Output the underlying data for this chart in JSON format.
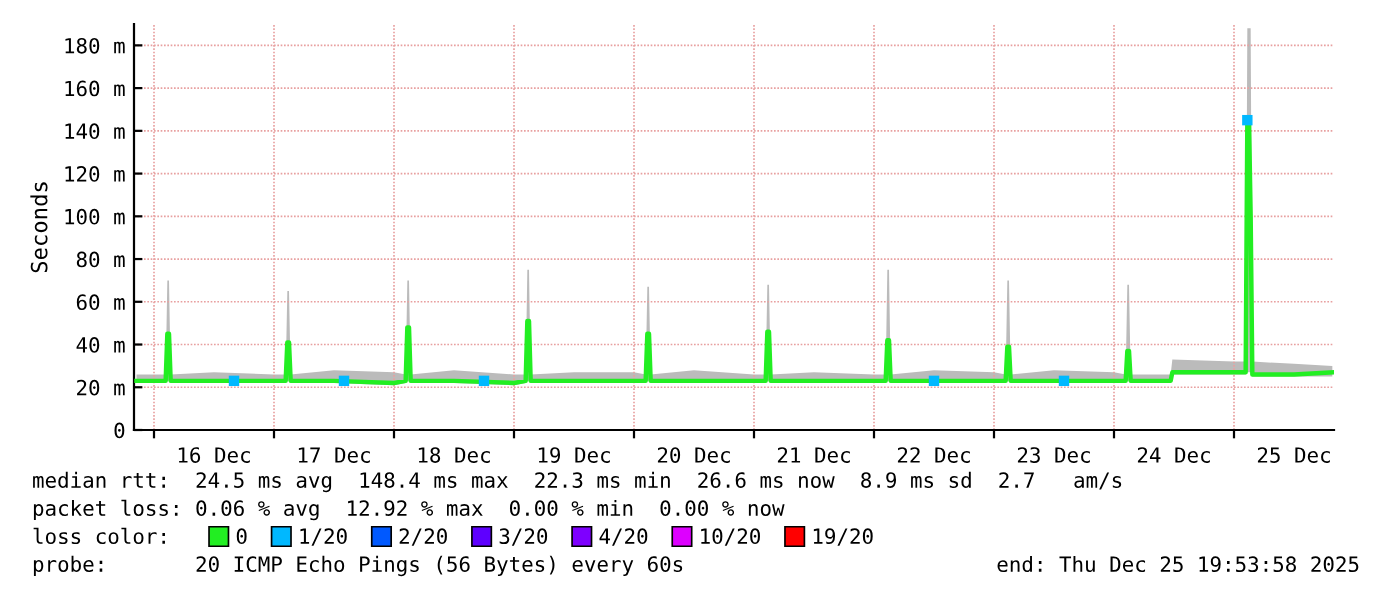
{
  "chart_data": {
    "type": "line",
    "ylabel": "Seconds",
    "legend_title": "loss color:",
    "legend": "bottom",
    "grid": true,
    "xlim": [
      "2025-12-15T20:00",
      "2025-12-25T20:00"
    ],
    "xticks": [
      {
        "value": "2025-12-16T00:00",
        "label": null
      },
      {
        "value": "2025-12-16T12:00",
        "label": "16 Dec"
      },
      {
        "value": "2025-12-17T00:00",
        "label": null
      },
      {
        "value": "2025-12-17T12:00",
        "label": "17 Dec"
      },
      {
        "value": "2025-12-18T00:00",
        "label": null
      },
      {
        "value": "2025-12-18T12:00",
        "label": "18 Dec"
      },
      {
        "value": "2025-12-19T00:00",
        "label": null
      },
      {
        "value": "2025-12-19T12:00",
        "label": "19 Dec"
      },
      {
        "value": "2025-12-20T00:00",
        "label": null
      },
      {
        "value": "2025-12-20T12:00",
        "label": "20 Dec"
      },
      {
        "value": "2025-12-21T00:00",
        "label": null
      },
      {
        "value": "2025-12-21T12:00",
        "label": "21 Dec"
      },
      {
        "value": "2025-12-22T00:00",
        "label": null
      },
      {
        "value": "2025-12-22T12:00",
        "label": "22 Dec"
      },
      {
        "value": "2025-12-23T00:00",
        "label": null
      },
      {
        "value": "2025-12-23T12:00",
        "label": "23 Dec"
      },
      {
        "value": "2025-12-24T00:00",
        "label": null
      },
      {
        "value": "2025-12-24T12:00",
        "label": "24 Dec"
      },
      {
        "value": "2025-12-25T00:00",
        "label": null
      },
      {
        "value": "2025-12-25T12:00",
        "label": "25 Dec"
      }
    ],
    "ylim": [
      0,
      190
    ],
    "yticks": [
      0,
      {
        "value": 20,
        "label": "20 m"
      },
      {
        "value": 40,
        "label": "40 m"
      },
      {
        "value": 60,
        "label": "60 m"
      },
      {
        "value": 80,
        "label": "80 m"
      },
      {
        "value": 100,
        "label": "100 m"
      },
      {
        "value": 120,
        "label": "120 m"
      },
      {
        "value": 140,
        "label": "140 m"
      },
      {
        "value": 160,
        "label": "160 m"
      },
      {
        "value": 180,
        "label": "180 m"
      }
    ],
    "series": [
      {
        "name": "0",
        "color": "#22ee22",
        "x": [
          "2025-12-15T20:30",
          "2025-12-16T00:00",
          "2025-12-16T02:20",
          "2025-12-16T02:40",
          "2025-12-16T03:00",
          "2025-12-16T03:20",
          "2025-12-16T12:00",
          "2025-12-17T00:00",
          "2025-12-17T02:20",
          "2025-12-17T02:40",
          "2025-12-17T03:00",
          "2025-12-17T03:20",
          "2025-12-17T12:00",
          "2025-12-18T00:00",
          "2025-12-18T02:20",
          "2025-12-18T02:40",
          "2025-12-18T03:00",
          "2025-12-18T03:20",
          "2025-12-18T12:00",
          "2025-12-19T00:00",
          "2025-12-19T02:20",
          "2025-12-19T02:40",
          "2025-12-19T03:00",
          "2025-12-19T03:20",
          "2025-12-19T12:00",
          "2025-12-20T00:00",
          "2025-12-20T02:20",
          "2025-12-20T02:40",
          "2025-12-20T03:00",
          "2025-12-20T03:20",
          "2025-12-20T12:00",
          "2025-12-21T00:00",
          "2025-12-21T02:20",
          "2025-12-21T02:40",
          "2025-12-21T03:00",
          "2025-12-21T03:20",
          "2025-12-21T12:00",
          "2025-12-22T00:00",
          "2025-12-22T02:20",
          "2025-12-22T02:40",
          "2025-12-22T03:00",
          "2025-12-22T03:20",
          "2025-12-22T12:00",
          "2025-12-23T00:00",
          "2025-12-23T02:20",
          "2025-12-23T02:40",
          "2025-12-23T03:00",
          "2025-12-23T03:20",
          "2025-12-23T12:00",
          "2025-12-24T00:00",
          "2025-12-24T02:20",
          "2025-12-24T02:40",
          "2025-12-24T03:00",
          "2025-12-24T03:20",
          "2025-12-24T11:20",
          "2025-12-24T11:40",
          "2025-12-25T00:00",
          "2025-12-25T02:20",
          "2025-12-25T02:40",
          "2025-12-25T03:00",
          "2025-12-25T03:20",
          "2025-12-25T03:40",
          "2025-12-25T12:00",
          "2025-12-25T19:40"
        ],
        "values": [
          23,
          23,
          23,
          45,
          45,
          23,
          23,
          23,
          23,
          41,
          41,
          23,
          23,
          22,
          23,
          48,
          48,
          23,
          23,
          22,
          23,
          51,
          51,
          23,
          23,
          23,
          23,
          45,
          45,
          23,
          23,
          23,
          23,
          46,
          46,
          23,
          23,
          23,
          23,
          42,
          42,
          23,
          23,
          23,
          23,
          39,
          39,
          23,
          23,
          23,
          23,
          37,
          37,
          23,
          23,
          27,
          27,
          27,
          145,
          145,
          100,
          26,
          26,
          27
        ],
        "lower": [
          22,
          22,
          22,
          23,
          23,
          22,
          22,
          22,
          22,
          23,
          23,
          22,
          22,
          21,
          22,
          23,
          23,
          22,
          22,
          21,
          22,
          23,
          23,
          22,
          22,
          22,
          22,
          23,
          23,
          22,
          22,
          22,
          22,
          23,
          23,
          22,
          22,
          22,
          22,
          23,
          23,
          22,
          22,
          22,
          22,
          23,
          23,
          22,
          22,
          22,
          22,
          23,
          23,
          22,
          22,
          26,
          26,
          26,
          27,
          27,
          27,
          25,
          25,
          25
        ],
        "upper": [
          26,
          26,
          26,
          70,
          70,
          26,
          27,
          26,
          26,
          65,
          65,
          26,
          28,
          27,
          26,
          70,
          70,
          26,
          28,
          26,
          26,
          75,
          75,
          26,
          27,
          27,
          26,
          67,
          67,
          26,
          28,
          26,
          26,
          68,
          68,
          26,
          27,
          26,
          26,
          75,
          75,
          26,
          28,
          27,
          26,
          70,
          70,
          26,
          28,
          27,
          26,
          68,
          68,
          26,
          26,
          33,
          32,
          32,
          188,
          188,
          188,
          32,
          31,
          30
        ]
      },
      {
        "name": "1/20",
        "color": "#00b8ff",
        "type": "scatter",
        "marker": "square",
        "x": [
          "2025-12-16T16:00",
          "2025-12-17T14:00",
          "2025-12-18T18:00",
          "2025-12-22T12:00",
          "2025-12-23T14:00",
          "2025-12-25T02:40"
        ],
        "values": [
          23,
          23,
          23,
          23,
          23,
          145
        ]
      },
      {
        "name": "2/20",
        "color": "#0059ff",
        "type": "scatter",
        "marker": "square"
      },
      {
        "name": "3/20",
        "color": "#5e00ff",
        "type": "scatter",
        "marker": "square"
      },
      {
        "name": "4/20",
        "color": "#7e00ff",
        "type": "scatter",
        "marker": "square"
      },
      {
        "name": "10/20",
        "color": "#dd00ff",
        "type": "scatter",
        "marker": "square"
      },
      {
        "name": "19/20",
        "color": "#ff0000",
        "type": "scatter",
        "marker": "square"
      }
    ],
    "annotations": [
      "median rtt:  24.5 ms avg  148.4 ms max  22.3 ms min  26.6 ms now  8.9 ms sd  2.7   am/s",
      "packet loss: 0.06 % avg  12.92 % max  0.00 % min  0.00 % now",
      "probe:       20 ICMP Echo Pings (56 Bytes) every 60s",
      "end: Thu Dec 25 19:53:58 2025"
    ]
  }
}
